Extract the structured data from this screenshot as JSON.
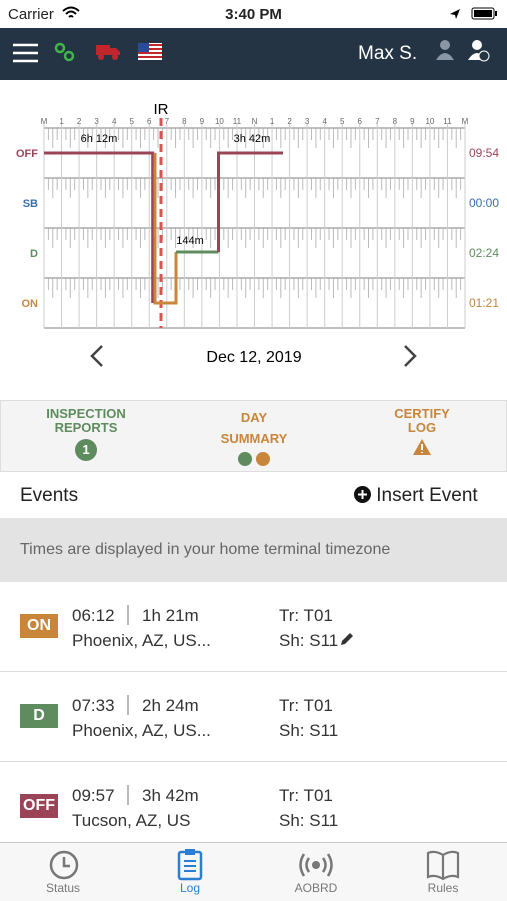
{
  "status_bar": {
    "carrier": "Carrier",
    "time": "3:40 PM"
  },
  "nav": {
    "user": "Max S."
  },
  "graph": {
    "hours": [
      "M",
      "1",
      "2",
      "3",
      "4",
      "5",
      "6",
      "7",
      "8",
      "9",
      "10",
      "11",
      "N",
      "1",
      "2",
      "3",
      "4",
      "5",
      "6",
      "7",
      "8",
      "9",
      "10",
      "11",
      "M"
    ],
    "rows": [
      {
        "label": "OFF",
        "total": "09:54"
      },
      {
        "label": "SB",
        "total": "00:00"
      },
      {
        "label": "D",
        "total": "02:24"
      },
      {
        "label": "ON",
        "total": "01:21"
      }
    ],
    "annotations": [
      "IR",
      "6h 12m",
      "3h 42m",
      "144m"
    ],
    "date": "Dec 12, 2019"
  },
  "tabs": [
    {
      "label": "INSPECTION REPORTS",
      "badge": 1
    },
    {
      "label": "DAY SUMMARY"
    },
    {
      "label": "CERTIFY LOG"
    }
  ],
  "events_header": {
    "title": "Events",
    "action": "Insert Event"
  },
  "notice": "Times are displayed in your home terminal timezone",
  "events": [
    {
      "status": "ON",
      "time": "06:12",
      "duration": "1h 21m",
      "location": "Phoenix, AZ, US...",
      "trailer": "Tr: T01",
      "shipping": "Sh: S11"
    },
    {
      "status": "D",
      "time": "07:33",
      "duration": "2h 24m",
      "location": "Phoenix, AZ, US...",
      "trailer": "Tr: T01",
      "shipping": "Sh: S11"
    },
    {
      "status": "OFF",
      "time": "09:57",
      "duration": "3h 42m",
      "location": "Tucson, AZ, US",
      "trailer": "Tr: T01",
      "shipping": "Sh: S11"
    }
  ],
  "bottom_tabs": [
    "Status",
    "Log",
    "AOBRD",
    "Rules"
  ]
}
